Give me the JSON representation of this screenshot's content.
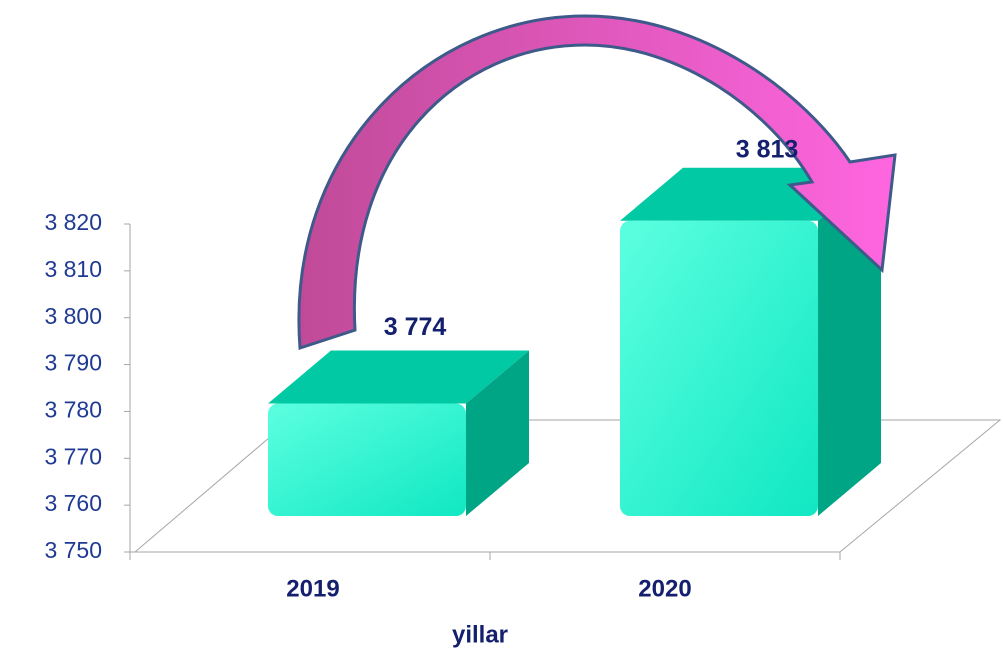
{
  "chart_data": {
    "type": "bar3d",
    "categories": [
      "2019",
      "2020"
    ],
    "values": [
      3774,
      3813
    ],
    "value_labels": [
      "3 774",
      "3 813"
    ],
    "x_label": "yillar",
    "ylim": [
      3750,
      3820
    ],
    "yticks": [
      {
        "value": 3750,
        "label": "3 750"
      },
      {
        "value": 3760,
        "label": "3 760"
      },
      {
        "value": 3770,
        "label": "3 770"
      },
      {
        "value": 3780,
        "label": "3 780"
      },
      {
        "value": 3790,
        "label": "3 790"
      },
      {
        "value": 3800,
        "label": "3 800"
      },
      {
        "value": 3810,
        "label": "3 810"
      },
      {
        "value": 3820,
        "label": "3 820"
      }
    ],
    "color": "#22f5d0"
  }
}
